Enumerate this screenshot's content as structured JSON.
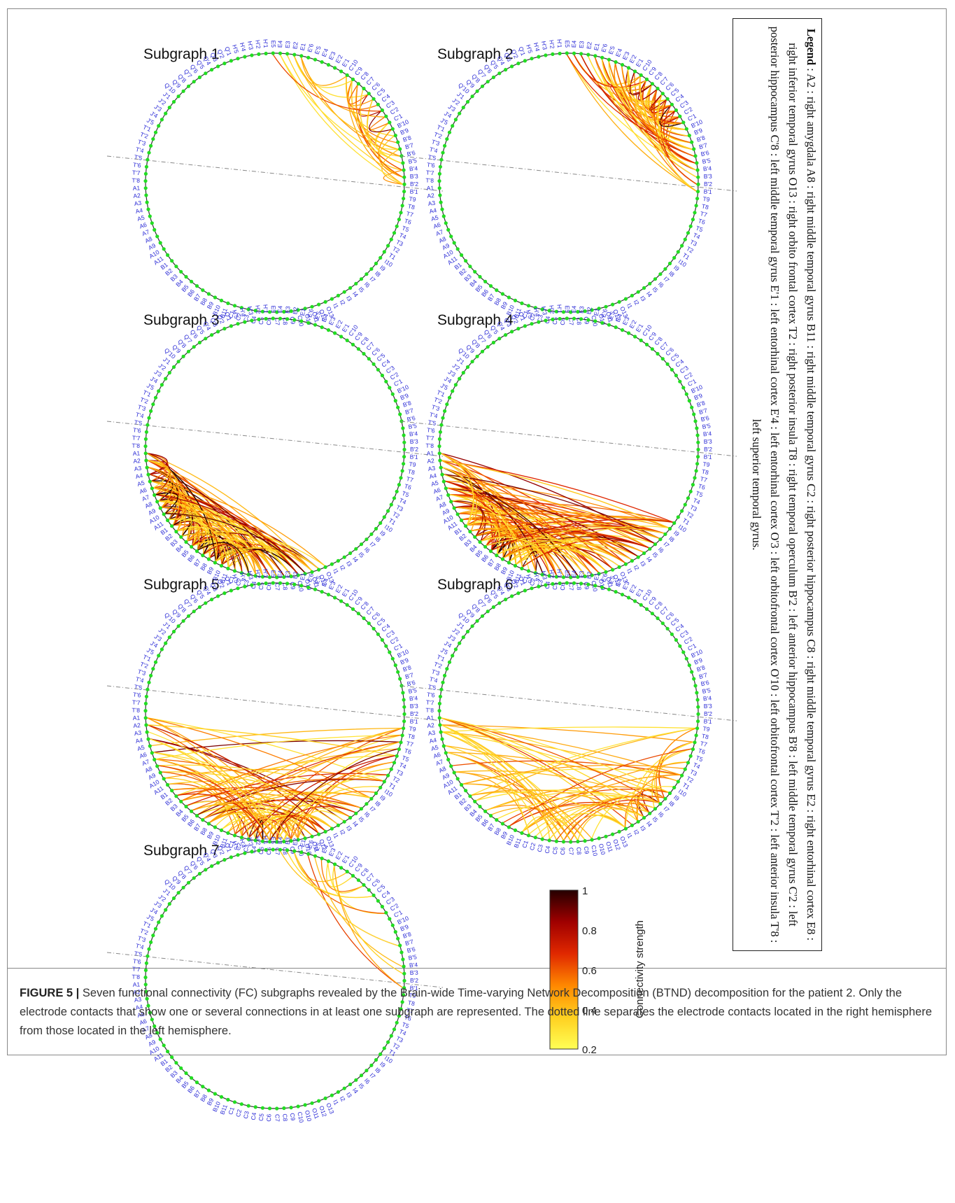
{
  "subgraphs": [
    {
      "id": 1,
      "title": "Subgraph 1"
    },
    {
      "id": 2,
      "title": "Subgraph 2"
    },
    {
      "id": 3,
      "title": "Subgraph 3"
    },
    {
      "id": 4,
      "title": "Subgraph 4"
    },
    {
      "id": 5,
      "title": "Subgraph 5"
    },
    {
      "id": 6,
      "title": "Subgraph 6"
    },
    {
      "id": 7,
      "title": "Subgraph 7"
    }
  ],
  "electrode_labels": [
    "H'1",
    "H'2",
    "H'3",
    "H'4",
    "H'5",
    "Q'1",
    "Q'2",
    "Q'3",
    "Q'4",
    "Q'5",
    "Q'6",
    "Q'7",
    "Q'8",
    "Q'9",
    "Q'10",
    "J'1",
    "J'2",
    "J'3",
    "J'4",
    "J'5",
    "T'1",
    "T'2",
    "T'3",
    "T'4",
    "T'5",
    "T'6",
    "T'7",
    "T'8",
    "A1",
    "A2",
    "A3",
    "A4",
    "A5",
    "A6",
    "A7",
    "A8",
    "A9",
    "A10",
    "A11",
    "B1",
    "B2",
    "B3",
    "B4",
    "B5",
    "B6",
    "B7",
    "B8",
    "B9",
    "B10",
    "B11",
    "C1",
    "C2",
    "C3",
    "C4",
    "C5",
    "C6",
    "C7",
    "C8",
    "C9",
    "C10",
    "O10",
    "O11",
    "O12",
    "O13",
    "I1",
    "I2",
    "I3",
    "I4",
    "I5",
    "I6",
    "I7",
    "I8",
    "I9",
    "I10",
    "T1",
    "T2",
    "T3",
    "T4",
    "T5",
    "T6",
    "T7",
    "T8",
    "T9",
    "B'1",
    "B'2",
    "B'3",
    "B'4",
    "B'5",
    "B'6",
    "B'7",
    "B'8",
    "B'9",
    "B'10",
    "C'1",
    "C'2",
    "C'3",
    "C'4",
    "C'5",
    "C'6",
    "C'7",
    "C'8",
    "C'9",
    "C'10",
    "E'1",
    "E'2",
    "E'3",
    "E'4",
    "E'5",
    "E'6",
    "E1",
    "E2",
    "E3",
    "E4",
    "E5"
  ],
  "colorbar": {
    "label": "Connectivity strength",
    "ticks": [
      "0.2",
      "0.4",
      "0.6",
      "0.8",
      "1"
    ],
    "colors": [
      "#ffff55",
      "#ffd020",
      "#ff8800",
      "#e02800",
      "#a00000",
      "#250000"
    ]
  },
  "legend": {
    "heading": "Legend",
    "text": " : A2 : right amygdala A8 : right middle temporal gyrus B11 : right middle temporal gyrus C2 : right posterior hippocampus C8 : right middle temporal gyrus E2 : right entorhinal cortex E8 : right inferior temporal gyrus O13 : right orbito frontal cortex T2 : right posterior insula T8 : right temporal operculum B'2 : left anterior hippocampus B'8 : left middle temporal gyrus C'2 : left posterior hippocampus C'8 : left middle temporal gyrus E'1 : left entorhinal cortex E'4 : left entorhinal cortex O'3 : left orbitofrontal cortex O'10 : left orbitofrontal cortex T'2 : left anterior insula T'8 : left superior temporal gyrus."
  },
  "caption": {
    "label": "FIGURE 5 |",
    "text": " Seven functional connectivity (FC) subgraphs revealed by the Brain-wide Time-varying Network Decomposition (BTND) decomposition for the patient 2. Only the electrode contacts that show one or several connections in at least one subgraph are represented. The dotted line separates the electrode contacts located in the right hemisphere from those located in the left hemisphere."
  }
}
